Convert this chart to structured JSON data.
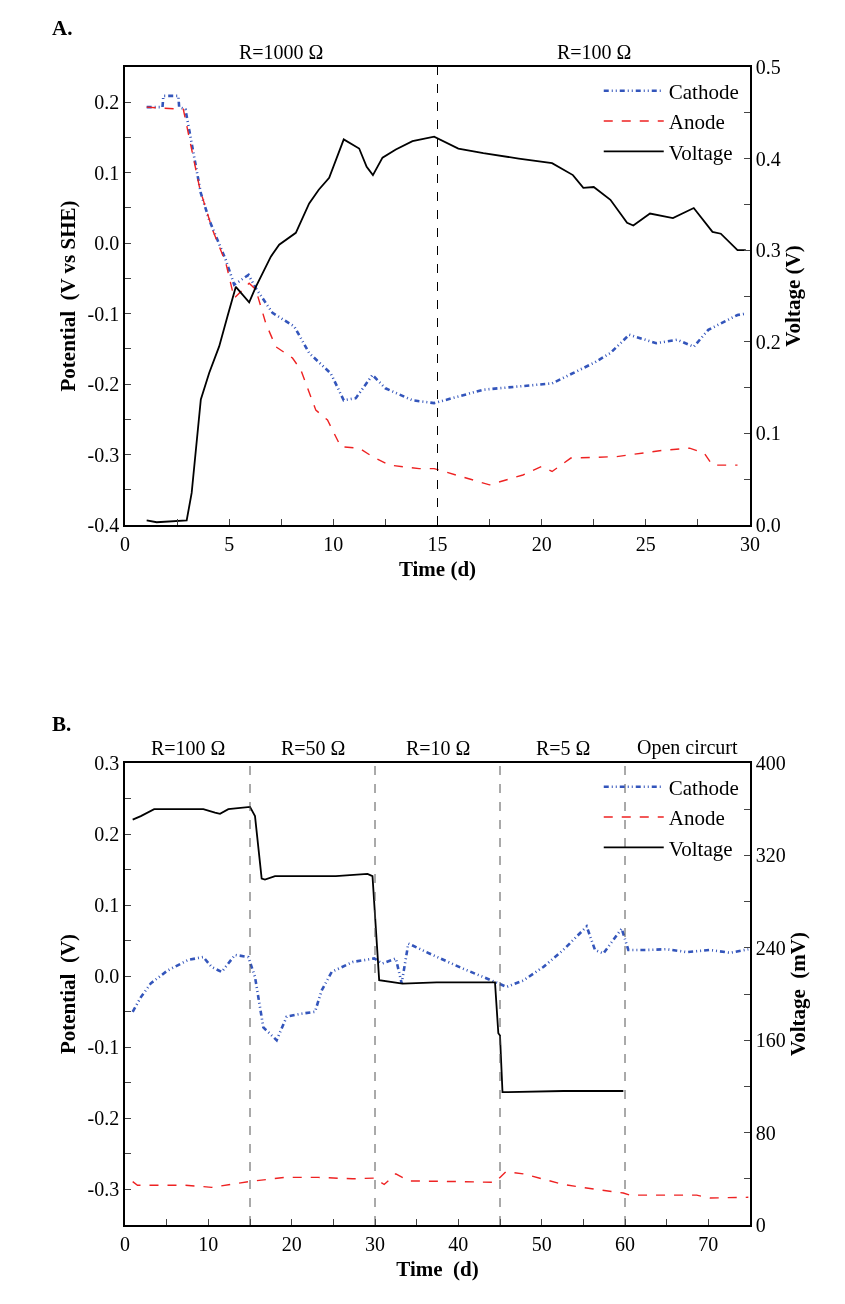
{
  "chart_data": [
    {
      "type": "line",
      "title": "A.",
      "xlabel": "Time (d)",
      "ylabel": "Potential  (V vs SHE)",
      "y2label": "Voltage (V)",
      "annotations": [
        "R=1000 Ω",
        "R=100 Ω"
      ],
      "xlim": [
        0,
        30
      ],
      "xticks": [
        0,
        {
          "value": 2.5,
          "label": null
        },
        5,
        {
          "value": 7.5,
          "label": null
        },
        10,
        {
          "value": 12.5,
          "label": null
        },
        15,
        {
          "value": 17.5,
          "label": null
        },
        20,
        {
          "value": 22.5,
          "label": null
        },
        25,
        {
          "value": 27.5,
          "label": null
        },
        30
      ],
      "ylim": [
        -0.4,
        0.25
      ],
      "yticks": [
        {
          "value": -0.4,
          "label": "-0.4"
        },
        {
          "value": -0.35,
          "label": null
        },
        {
          "value": -0.3,
          "label": "-0.3"
        },
        {
          "value": -0.25,
          "label": null
        },
        {
          "value": -0.2,
          "label": "-0.2"
        },
        {
          "value": -0.15,
          "label": null
        },
        {
          "value": -0.1,
          "label": "-0.1"
        },
        {
          "value": -0.05,
          "label": null
        },
        {
          "value": 0,
          "label": "0.0"
        },
        {
          "value": 0.05,
          "label": null
        },
        {
          "value": 0.1,
          "label": "0.1"
        },
        {
          "value": 0.15,
          "label": null
        },
        {
          "value": 0.2,
          "label": "0.2"
        }
      ],
      "y2lim": [
        0,
        0.5
      ],
      "y2ticks": [
        {
          "value": 0,
          "label": "0.0"
        },
        {
          "value": 0.05,
          "label": null
        },
        0.1,
        {
          "value": 0.15,
          "label": null
        },
        0.2,
        {
          "value": 0.25,
          "label": null
        },
        0.3,
        {
          "value": 0.35,
          "label": null
        },
        0.4,
        {
          "value": 0.45,
          "label": null
        },
        0.5
      ],
      "ref_lines": [
        {
          "axis": "x",
          "value": 15,
          "color": "#000000",
          "line_style": "dashed"
        }
      ],
      "legend": "top right",
      "series": [
        {
          "name": "Cathode",
          "color": "#3355bb",
          "line_style": "dotted",
          "x": [
            1.04,
            1.8,
            1.84,
            2.56,
            2.6,
            2.9,
            3.64,
            4.04,
            4.84,
            5.24,
            5.93,
            6.28,
            7.08,
            8.12,
            8.84,
            9.88,
            10.5,
            11.08,
            11.88,
            12.5,
            13.8,
            14.84,
            17.2,
            20.5,
            22.5,
            23.3,
            24.2,
            25.5,
            26.5,
            27.3,
            28,
            29.4,
            29.8
          ],
          "values": [
            0.193,
            0.193,
            0.209,
            0.209,
            0.193,
            0.19,
            0.071,
            0.033,
            -0.024,
            -0.059,
            -0.045,
            -0.064,
            -0.099,
            -0.118,
            -0.156,
            -0.185,
            -0.223,
            -0.22,
            -0.187,
            -0.206,
            -0.223,
            -0.227,
            -0.208,
            -0.199,
            -0.17,
            -0.156,
            -0.13,
            -0.142,
            -0.137,
            -0.147,
            -0.123,
            -0.102,
            -0.1
          ]
        },
        {
          "name": "Anode",
          "color": "#ee2222",
          "line_style": "dashed",
          "x": [
            1.04,
            2.8,
            3.6,
            4.2,
            4.84,
            5.24,
            5.96,
            6.28,
            6.76,
            7.24,
            8.04,
            8.44,
            9.16,
            9.72,
            10.36,
            11.24,
            11.88,
            12.68,
            14.12,
            14.84,
            17.5,
            19.1,
            20,
            20.5,
            21.4,
            23.6,
            25.8,
            27.1,
            27.8,
            28.2,
            29.4
          ],
          "values": [
            0.193,
            0.19,
            0.076,
            0.019,
            -0.028,
            -0.078,
            -0.057,
            -0.066,
            -0.114,
            -0.147,
            -0.163,
            -0.18,
            -0.237,
            -0.251,
            -0.289,
            -0.291,
            -0.303,
            -0.315,
            -0.32,
            -0.32,
            -0.343,
            -0.329,
            -0.317,
            -0.324,
            -0.305,
            -0.303,
            -0.294,
            -0.291,
            -0.298,
            -0.315,
            -0.315
          ]
        },
        {
          "name": "Voltage",
          "color": "#000000",
          "line_style": "solid",
          "axis": "y2",
          "x": [
            1.04,
            1.52,
            2.96,
            3.2,
            3.64,
            4.04,
            4.52,
            4.92,
            5.32,
            5.96,
            6.28,
            7.0,
            7.4,
            8.2,
            8.84,
            9.3,
            9.8,
            10.5,
            11.24,
            11.6,
            11.9,
            12.36,
            13.0,
            13.8,
            14.84,
            16.0,
            17.2,
            18.9,
            20.5,
            21.5,
            22.0,
            22.5,
            23.3,
            24.1,
            24.4,
            25.2,
            26.3,
            27.3,
            28.2,
            28.6,
            29.4,
            29.8
          ],
          "values": [
            0.005,
            0.003,
            0.005,
            0.035,
            0.137,
            0.166,
            0.195,
            0.228,
            0.26,
            0.243,
            0.26,
            0.293,
            0.306,
            0.319,
            0.351,
            0.366,
            0.379,
            0.421,
            0.411,
            0.391,
            0.382,
            0.401,
            0.41,
            0.419,
            0.424,
            0.411,
            0.406,
            0.4,
            0.395,
            0.382,
            0.368,
            0.369,
            0.355,
            0.33,
            0.327,
            0.34,
            0.335,
            0.346,
            0.32,
            0.318,
            0.3,
            0.3
          ]
        }
      ]
    },
    {
      "type": "line",
      "title": "B.",
      "xlabel": "Time  (d)",
      "ylabel": "Potential  (V)",
      "y2label": "Voltage  (mV)",
      "annotations": [
        "R=100 Ω",
        "R=50 Ω",
        "R=10 Ω",
        "R=5 Ω",
        "Open circurt"
      ],
      "xlim": [
        0,
        75
      ],
      "xticks": [
        0,
        {
          "value": 5,
          "label": null
        },
        10,
        {
          "value": 15,
          "label": null
        },
        20,
        {
          "value": 25,
          "label": null
        },
        30,
        {
          "value": 35,
          "label": null
        },
        40,
        {
          "value": 45,
          "label": null
        },
        50,
        {
          "value": 55,
          "label": null
        },
        60,
        {
          "value": 65,
          "label": null
        },
        70,
        {
          "value": 75,
          "label": null
        }
      ],
      "ylim": [
        -0.35,
        0.3
      ],
      "yticks": [
        {
          "value": -0.3,
          "label": "-0.3"
        },
        {
          "value": -0.25,
          "label": null
        },
        {
          "value": -0.2,
          "label": "-0.2"
        },
        {
          "value": -0.15,
          "label": null
        },
        {
          "value": -0.1,
          "label": "-0.1"
        },
        {
          "value": -0.05,
          "label": null
        },
        {
          "value": 0,
          "label": "0.0"
        },
        {
          "value": 0.05,
          "label": null
        },
        {
          "value": 0.1,
          "label": "0.1"
        },
        {
          "value": 0.15,
          "label": null
        },
        {
          "value": 0.2,
          "label": "0.2"
        },
        {
          "value": 0.25,
          "label": null
        },
        {
          "value": 0.3,
          "label": "0.3"
        }
      ],
      "y2lim": [
        0,
        400
      ],
      "y2ticks": [
        0,
        {
          "value": 40,
          "label": null
        },
        80,
        {
          "value": 120,
          "label": null
        },
        160,
        {
          "value": 200,
          "label": null
        },
        240,
        {
          "value": 280,
          "label": null
        },
        320,
        {
          "value": 360,
          "label": null
        },
        400
      ],
      "ref_lines": [
        {
          "axis": "x",
          "value": 15,
          "color": "#555555",
          "line_style": "dashed"
        },
        {
          "axis": "x",
          "value": 30,
          "color": "#555555",
          "line_style": "dashed"
        },
        {
          "axis": "x",
          "value": 45,
          "color": "#555555",
          "line_style": "dashed"
        },
        {
          "axis": "x",
          "value": 60,
          "color": "#555555",
          "line_style": "dashed"
        }
      ],
      "legend": "top right",
      "series": [
        {
          "name": "Cathode",
          "color": "#3355bb",
          "line_style": "dotted",
          "x": [
            0.92,
            1.93,
            3.1,
            5.1,
            7.6,
            9.4,
            10.4,
            11.6,
            13.2,
            14.8,
            15.6,
            16.6,
            18.2,
            19.4,
            21.0,
            22.8,
            23.6,
            24.8,
            27.3,
            29.9,
            30.9,
            32.5,
            33.2,
            34.0,
            36.9,
            40.5,
            44.4,
            45.8,
            47.8,
            50.2,
            52.6,
            55.4,
            56.4,
            57.4,
            59.6,
            60.4,
            62.6,
            65.0,
            67.4,
            70.2,
            72.6,
            74.8
          ],
          "values": [
            -0.05,
            -0.029,
            -0.01,
            0.008,
            0.023,
            0.027,
            0.013,
            0.006,
            0.03,
            0.027,
            -0.001,
            -0.072,
            -0.09,
            -0.057,
            -0.053,
            -0.05,
            -0.02,
            0.006,
            0.02,
            0.025,
            0.018,
            0.025,
            -0.01,
            0.046,
            0.03,
            0.011,
            -0.008,
            -0.015,
            -0.006,
            0.013,
            0.037,
            0.07,
            0.037,
            0.032,
            0.067,
            0.037,
            0.037,
            0.038,
            0.034,
            0.037,
            0.033,
            0.038
          ]
        },
        {
          "name": "Anode",
          "color": "#ee2222",
          "line_style": "dashed",
          "x": [
            0.92,
            1.5,
            7.2,
            10.4,
            14.8,
            19.2,
            23.2,
            27.3,
            29.9,
            31.1,
            32.5,
            34.1,
            40.5,
            44.4,
            45.7,
            47.8,
            52.6,
            56.6,
            59.8,
            60.6,
            68.6,
            70.2,
            74.8
          ],
          "values": [
            -0.289,
            -0.294,
            -0.294,
            -0.297,
            -0.289,
            -0.283,
            -0.283,
            -0.285,
            -0.284,
            -0.293,
            -0.278,
            -0.288,
            -0.289,
            -0.29,
            -0.275,
            -0.278,
            -0.293,
            -0.3,
            -0.305,
            -0.308,
            -0.308,
            -0.312,
            -0.311
          ]
        },
        {
          "name": "Voltage",
          "color": "#000000",
          "line_style": "solid",
          "axis": "y2",
          "x": [
            0.92,
            1.9,
            3.5,
            7.2,
            9.4,
            10.8,
            11.4,
            12.4,
            15.0,
            15.6,
            16.4,
            16.8,
            18.0,
            23.2,
            25.3,
            29.1,
            29.7,
            30.5,
            33.3,
            37.4,
            44.4,
            44.8,
            45.0,
            45.3,
            52.6,
            59.8
          ],
          "values": [
            351,
            354,
            360,
            360,
            360,
            357,
            356,
            360,
            362,
            354,
            300,
            299,
            302,
            302,
            302,
            304,
            302,
            212,
            209,
            210,
            210,
            166,
            164,
            115,
            116,
            116
          ]
        }
      ]
    }
  ]
}
